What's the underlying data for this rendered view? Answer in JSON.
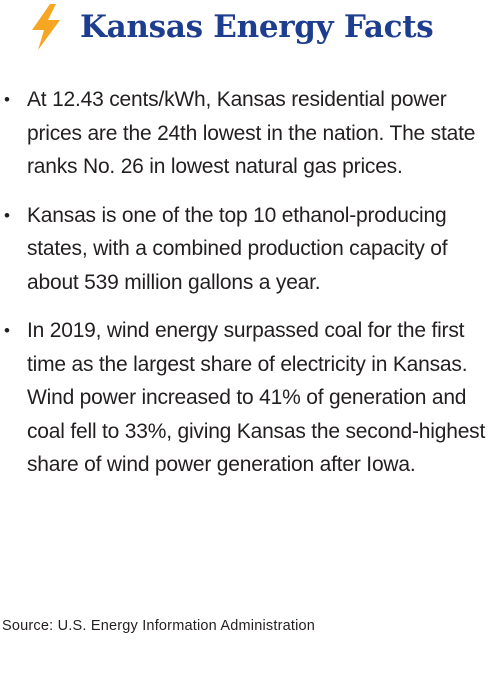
{
  "header": {
    "title": "Kansas Energy Facts"
  },
  "bullets": [
    "At 12.43 cents/kWh, Kansas residential power prices are the 24th lowest in the nation. The state ranks No. 26 in lowest natural gas prices.",
    "Kansas is one of the top 10 ethanol-producing states, with a combined production capacity of about 539 million gallons a year.",
    "In 2019, wind energy surpassed coal for the first time as the largest share of electricity in Kansas. Wind power increased to 41% of generation and coal fell to 33%, giving Kansas the second-highest share of wind power generation after Iowa."
  ],
  "source": "Source: U.S. Energy Information Administration"
}
